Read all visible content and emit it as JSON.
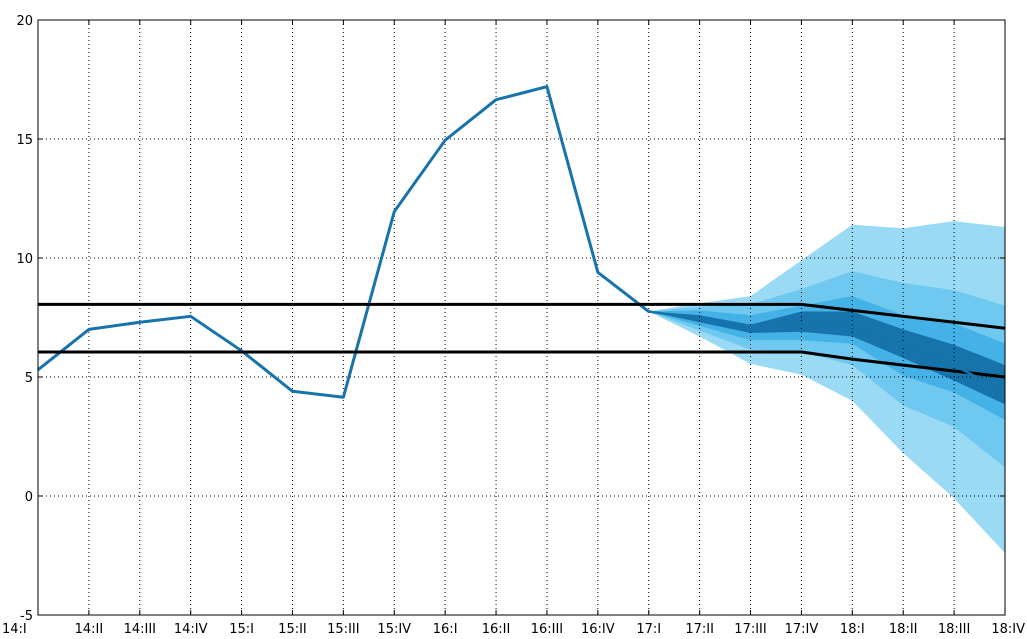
{
  "chart_data": {
    "type": "line",
    "categories": [
      "14:I",
      "14:II",
      "14:III",
      "14:IV",
      "15:I",
      "15:II",
      "15:III",
      "15:IV",
      "16:I",
      "16:II",
      "16:III",
      "16:IV",
      "17:I",
      "17:II",
      "17:III",
      "17:IV",
      "18:I",
      "18:II",
      "18:III",
      "18:IV"
    ],
    "ylim": [
      -5,
      20
    ],
    "yticks": [
      -5,
      0,
      5,
      10,
      15,
      20
    ],
    "ytick_labels": [
      "-5",
      "0",
      "5",
      "10",
      "15",
      "20"
    ],
    "grid": true,
    "series": [
      {
        "values": [
          5.3,
          7.0,
          7.3,
          7.55,
          6.1,
          4.4,
          4.15,
          11.95,
          14.95,
          16.65,
          17.2,
          9.4,
          7.75,
          null,
          null,
          null,
          null,
          null,
          null,
          null
        ]
      },
      {
        "values": [
          8.05,
          8.05,
          8.05,
          8.05,
          8.05,
          8.05,
          8.05,
          8.05,
          8.05,
          8.05,
          8.05,
          8.05,
          8.05,
          8.05,
          8.05,
          8.05,
          7.8,
          7.55,
          7.3,
          7.05
        ]
      },
      {
        "values": [
          6.05,
          6.05,
          6.05,
          6.05,
          6.05,
          6.05,
          6.05,
          6.05,
          6.05,
          6.05,
          6.05,
          6.05,
          6.05,
          6.05,
          6.05,
          6.05,
          5.75,
          5.5,
          5.25,
          5.0
        ]
      }
    ],
    "fan": {
      "start_index": 12,
      "center": [
        7.75,
        7.45,
        7.0,
        7.25,
        7.1,
        6.4,
        5.5,
        4.35
      ],
      "bands": [
        {
          "upper": [
            7.75,
            8.1,
            8.4,
            9.9,
            11.4,
            11.25,
            11.55,
            11.3
          ],
          "lower": [
            7.75,
            6.7,
            5.55,
            5.1,
            4.0,
            1.8,
            -0.1,
            -2.4
          ],
          "color": "#9bdaf4"
        },
        {
          "upper": [
            7.75,
            7.95,
            8.05,
            8.7,
            9.45,
            8.95,
            8.65,
            8.0
          ],
          "lower": [
            7.75,
            6.95,
            6.15,
            6.05,
            5.5,
            3.8,
            2.9,
            1.2
          ],
          "color": "#6fc8ef"
        },
        {
          "upper": [
            7.75,
            7.8,
            7.6,
            8.0,
            8.4,
            7.6,
            7.25,
            6.4
          ],
          "lower": [
            7.75,
            7.15,
            6.55,
            6.55,
            6.4,
            5.05,
            4.35,
            3.2
          ],
          "color": "#44b2e6"
        },
        {
          "upper": [
            7.75,
            7.6,
            7.2,
            7.75,
            7.75,
            7.0,
            6.35,
            5.5
          ],
          "lower": [
            7.75,
            7.3,
            6.85,
            6.9,
            6.7,
            5.8,
            4.85,
            3.85
          ],
          "color": "#1673ab"
        }
      ]
    },
    "colors": {
      "actual": "#1673ab",
      "band_lines": "#000000",
      "grid": "#000000"
    }
  }
}
